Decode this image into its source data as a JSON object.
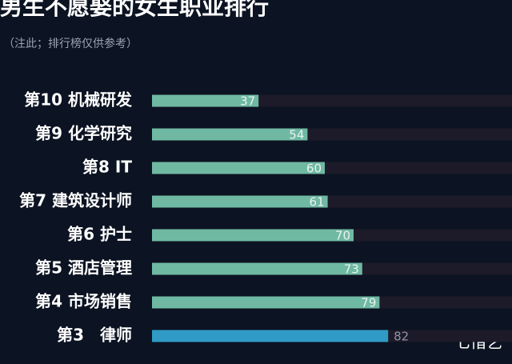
{
  "chart_data": {
    "type": "bar",
    "orientation": "horizontal",
    "title": "男生不愿娶的女生职业排行",
    "subtitle": "（注此；排行榜仅供参考）",
    "categories": [
      "第10 机械研发",
      "第9 化学研究",
      "第8 IT",
      "第7 建筑设计师",
      "第6 护士",
      "第5 酒店管理",
      "第4 市场销售",
      "第3　律师"
    ],
    "values": [
      37,
      54,
      60,
      61,
      70,
      73,
      79,
      82
    ],
    "colors": [
      "#6fb9a3",
      "#6fb9a3",
      "#6fb9a3",
      "#6fb9a3",
      "#6fb9a3",
      "#6fb9a3",
      "#6fb9a3",
      "#2f9bc6"
    ],
    "xlim": [
      0,
      125
    ],
    "watermark": "七惜艺"
  }
}
